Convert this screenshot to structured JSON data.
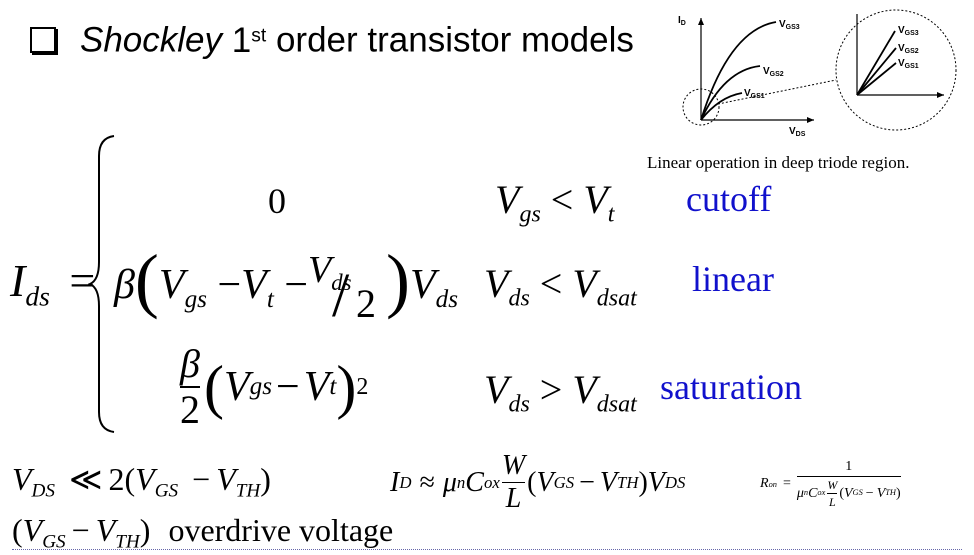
{
  "heading": {
    "bullet_icon": "hollow-square-icon",
    "name": "Shockley",
    "order_num": "1",
    "order_sup": "st",
    "rest": "order transistor models"
  },
  "plot": {
    "y_label": "I",
    "y_sub": "D",
    "x_label": "V",
    "x_sub": "DS",
    "curve_label": "V",
    "gs1_sub": "GS1",
    "gs2_sub": "GS2",
    "gs3_sub": "GS3",
    "caption": "Linear operation in deep triode region."
  },
  "equation": {
    "lhs_I": "I",
    "lhs_sub": "ds",
    "equals": "=",
    "case_cutoff_value": "0",
    "case_cutoff_condition": {
      "a": "V",
      "a_sub": "gs",
      "op": "<",
      "b": "V",
      "b_sub": "t"
    },
    "case_cutoff_label": "cutoff",
    "case_linear_beta": "β",
    "case_linear_condition": {
      "a": "V",
      "a_sub": "ds",
      "op": "<",
      "b": "V",
      "b_sub": "dsat"
    },
    "case_linear_label": "linear",
    "case_linear_terms": {
      "v": "V",
      "gs": "gs",
      "t": "t",
      "ds": "ds",
      "two": "2",
      "minus": "−"
    },
    "case_sat_beta": "β",
    "case_sat_two": "2",
    "case_sat_power": "2",
    "case_sat_condition": {
      "a": "V",
      "a_sub": "ds",
      "op": ">",
      "b": "V",
      "b_sub": "dsat"
    },
    "case_sat_label": "saturation"
  },
  "bottom": {
    "condition": {
      "v": "V",
      "ds": "DS",
      "ll": "≪",
      "two": "2(",
      "gs": "GS",
      "minus": "−",
      "th": "TH",
      "close": ")"
    },
    "id_approx": {
      "i": "I",
      "d": "D",
      "approx": "≈",
      "mu": "μ",
      "n": "n",
      "c": "C",
      "ox": "ox",
      "w": "W",
      "l": "L",
      "v": "V",
      "gs": "GS",
      "minus": "−",
      "th": "TH",
      "ds": "DS"
    },
    "ron": {
      "r": "R",
      "on": "on",
      "eq": "=",
      "one": "1",
      "mu": "μ",
      "n": "n",
      "c": "C",
      "ox": "ox",
      "w": "W",
      "l": "L",
      "v": "V",
      "gs": "GS",
      "minus": "−",
      "th": "TH"
    },
    "overdrive_term": {
      "v": "V",
      "gs": "GS",
      "minus": "−",
      "th": "TH"
    },
    "overdrive_label": "overdrive voltage"
  }
}
